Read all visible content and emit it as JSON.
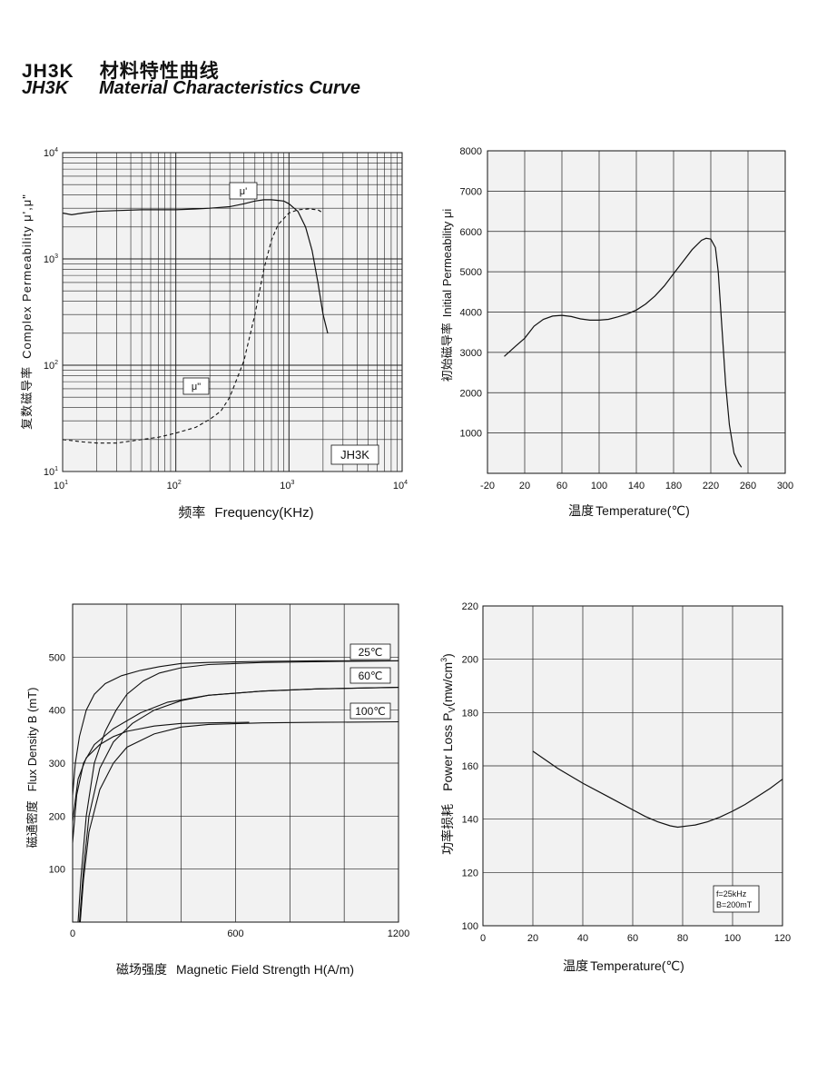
{
  "header": {
    "model": "JH3K",
    "title_cn": "材料特性曲线",
    "model_en": "JH3K",
    "title_en": "Material Characteristics Curve"
  },
  "chart_data": [
    {
      "id": "permeability_vs_frequency",
      "type": "line",
      "xscale": "log",
      "yscale": "log",
      "xlim": [
        10,
        10000
      ],
      "ylim": [
        10,
        10000
      ],
      "xticks": [
        {
          "v": 10,
          "base": "10",
          "exp": "1"
        },
        {
          "v": 100,
          "base": "10",
          "exp": "2"
        },
        {
          "v": 1000,
          "base": "10",
          "exp": "3"
        },
        {
          "v": 10000,
          "base": "10",
          "exp": "4"
        }
      ],
      "yticks": [
        {
          "v": 10,
          "base": "10",
          "exp": "1"
        },
        {
          "v": 100,
          "base": "10",
          "exp": "2"
        },
        {
          "v": 1000,
          "base": "10",
          "exp": "3"
        },
        {
          "v": 10000,
          "base": "10",
          "exp": "4"
        }
      ],
      "xlabel_cn": "频率",
      "xlabel": "Frequency(KHz)",
      "ylabel_cn": "复数磁导率",
      "ylabel": "Complex Permeability μ',μ\"",
      "annotation": "JH3K",
      "series": [
        {
          "name": "μ'",
          "style": "solid",
          "x": [
            10,
            12,
            15,
            20,
            30,
            50,
            70,
            100,
            150,
            200,
            300,
            400,
            500,
            600,
            700,
            800,
            900,
            1000,
            1200,
            1400,
            1600,
            1800,
            2000,
            2200
          ],
          "y": [
            2700,
            2600,
            2700,
            2800,
            2850,
            2900,
            2900,
            2900,
            2950,
            3000,
            3100,
            3300,
            3500,
            3600,
            3600,
            3550,
            3500,
            3300,
            2800,
            2000,
            1200,
            600,
            300,
            200
          ]
        },
        {
          "name": "μ\"",
          "style": "dashed",
          "x": [
            10,
            15,
            20,
            30,
            50,
            70,
            100,
            150,
            200,
            250,
            300,
            400,
            500,
            600,
            700,
            800,
            1000,
            1200,
            1500,
            1800,
            2000
          ],
          "y": [
            20,
            19,
            18.5,
            18.5,
            20,
            21,
            23,
            26,
            31,
            37,
            50,
            110,
            300,
            800,
            1500,
            2100,
            2700,
            2900,
            2950,
            2900,
            2700
          ]
        }
      ]
    },
    {
      "id": "initial_permeability_vs_temperature",
      "type": "line",
      "xlim": [
        -20,
        300
      ],
      "ylim": [
        0,
        8000
      ],
      "xticks": [
        -20,
        20,
        60,
        100,
        140,
        180,
        220,
        260,
        300
      ],
      "yticks": [
        1000,
        2000,
        3000,
        4000,
        5000,
        6000,
        7000,
        8000
      ],
      "xlabel_cn": "温度",
      "xlabel": "Temperature(℃)",
      "ylabel_cn": "初始磁导率",
      "ylabel": "Initial Permeability  μi",
      "series": [
        {
          "name": "μi",
          "x": [
            -2,
            10,
            20,
            30,
            40,
            50,
            60,
            70,
            80,
            90,
            100,
            110,
            120,
            130,
            140,
            150,
            160,
            170,
            180,
            190,
            200,
            210,
            215,
            220,
            225,
            228,
            232,
            236,
            240,
            245,
            250,
            253
          ],
          "y": [
            2900,
            3150,
            3350,
            3650,
            3820,
            3900,
            3920,
            3890,
            3830,
            3800,
            3800,
            3820,
            3880,
            3950,
            4050,
            4200,
            4400,
            4650,
            4950,
            5250,
            5550,
            5780,
            5830,
            5810,
            5600,
            5000,
            3600,
            2200,
            1200,
            500,
            250,
            150
          ]
        }
      ]
    },
    {
      "id": "flux_density_vs_field",
      "type": "line",
      "xlim": [
        0,
        1200
      ],
      "ylim": [
        0,
        600
      ],
      "xticks": [
        0,
        600,
        1200
      ],
      "yticks": [
        100,
        200,
        300,
        400,
        500
      ],
      "xlabel_cn": "磁场强度",
      "xlabel": "Magnetic Field Strength H(A/m)",
      "ylabel_cn": "磁通密度",
      "ylabel": "Flux Density B (mT)",
      "legend": [
        "25℃",
        "60℃",
        "100℃"
      ],
      "series": [
        {
          "name": "25℃ initial",
          "x": [
            0,
            10,
            25,
            50,
            80,
            120,
            180,
            250,
            320,
            400,
            500,
            700,
            900,
            1200
          ],
          "y": [
            240,
            300,
            350,
            400,
            430,
            450,
            465,
            475,
            482,
            488,
            490,
            492,
            493,
            493
          ]
        },
        {
          "name": "25℃ curve",
          "x": [
            20,
            30,
            50,
            80,
            120,
            160,
            200,
            260,
            320,
            400,
            500,
            700,
            1000,
            1200
          ],
          "y": [
            0,
            80,
            200,
            300,
            360,
            400,
            430,
            455,
            470,
            480,
            486,
            490,
            492,
            493
          ]
        },
        {
          "name": "60℃ initial",
          "x": [
            0,
            15,
            40,
            80,
            150,
            250,
            350,
            500,
            700,
            900,
            1200
          ],
          "y": [
            150,
            240,
            300,
            335,
            365,
            395,
            415,
            428,
            436,
            440,
            443
          ]
        },
        {
          "name": "60℃ curve",
          "x": [
            25,
            40,
            60,
            100,
            150,
            220,
            300,
            400,
            500,
            700,
            900,
            1200
          ],
          "y": [
            0,
            100,
            200,
            290,
            340,
            375,
            400,
            418,
            428,
            436,
            440,
            443
          ]
        },
        {
          "name": "100℃ initial",
          "x": [
            0,
            20,
            50,
            100,
            150,
            200,
            300,
            400,
            500,
            650
          ],
          "y": [
            190,
            270,
            310,
            335,
            350,
            360,
            370,
            375,
            376,
            377
          ]
        },
        {
          "name": "100℃ curve",
          "x": [
            28,
            40,
            60,
            100,
            150,
            200,
            300,
            400,
            500,
            700,
            900,
            1200
          ],
          "y": [
            0,
            80,
            170,
            250,
            300,
            330,
            355,
            368,
            373,
            376,
            377,
            378
          ]
        }
      ]
    },
    {
      "id": "power_loss_vs_temperature",
      "type": "line",
      "xlim": [
        0,
        120
      ],
      "ylim": [
        100,
        220
      ],
      "xticks": [
        0,
        20,
        40,
        60,
        80,
        100,
        120
      ],
      "yticks": [
        100,
        120,
        140,
        160,
        180,
        200,
        220
      ],
      "xlabel_cn": "温度",
      "xlabel": "Temperature(℃)",
      "ylabel_cn": "功率损耗",
      "ylabel": "Power  Loss P",
      "ylabel_sub": "V",
      "ylabel_tail": "(mw/cm",
      "ylabel_sup": "3",
      "ylabel_close": ")",
      "notes": [
        "f=25kHz",
        "B=200mT"
      ],
      "series": [
        {
          "name": "Pv",
          "x": [
            20,
            30,
            40,
            50,
            60,
            65,
            70,
            75,
            78,
            85,
            90,
            95,
            100,
            105,
            110,
            115,
            120
          ],
          "y": [
            165.5,
            159,
            153.5,
            148.5,
            143.5,
            141,
            139,
            137.5,
            137,
            137.8,
            139,
            140.8,
            143,
            145.5,
            148.5,
            151.5,
            155
          ]
        }
      ]
    }
  ]
}
